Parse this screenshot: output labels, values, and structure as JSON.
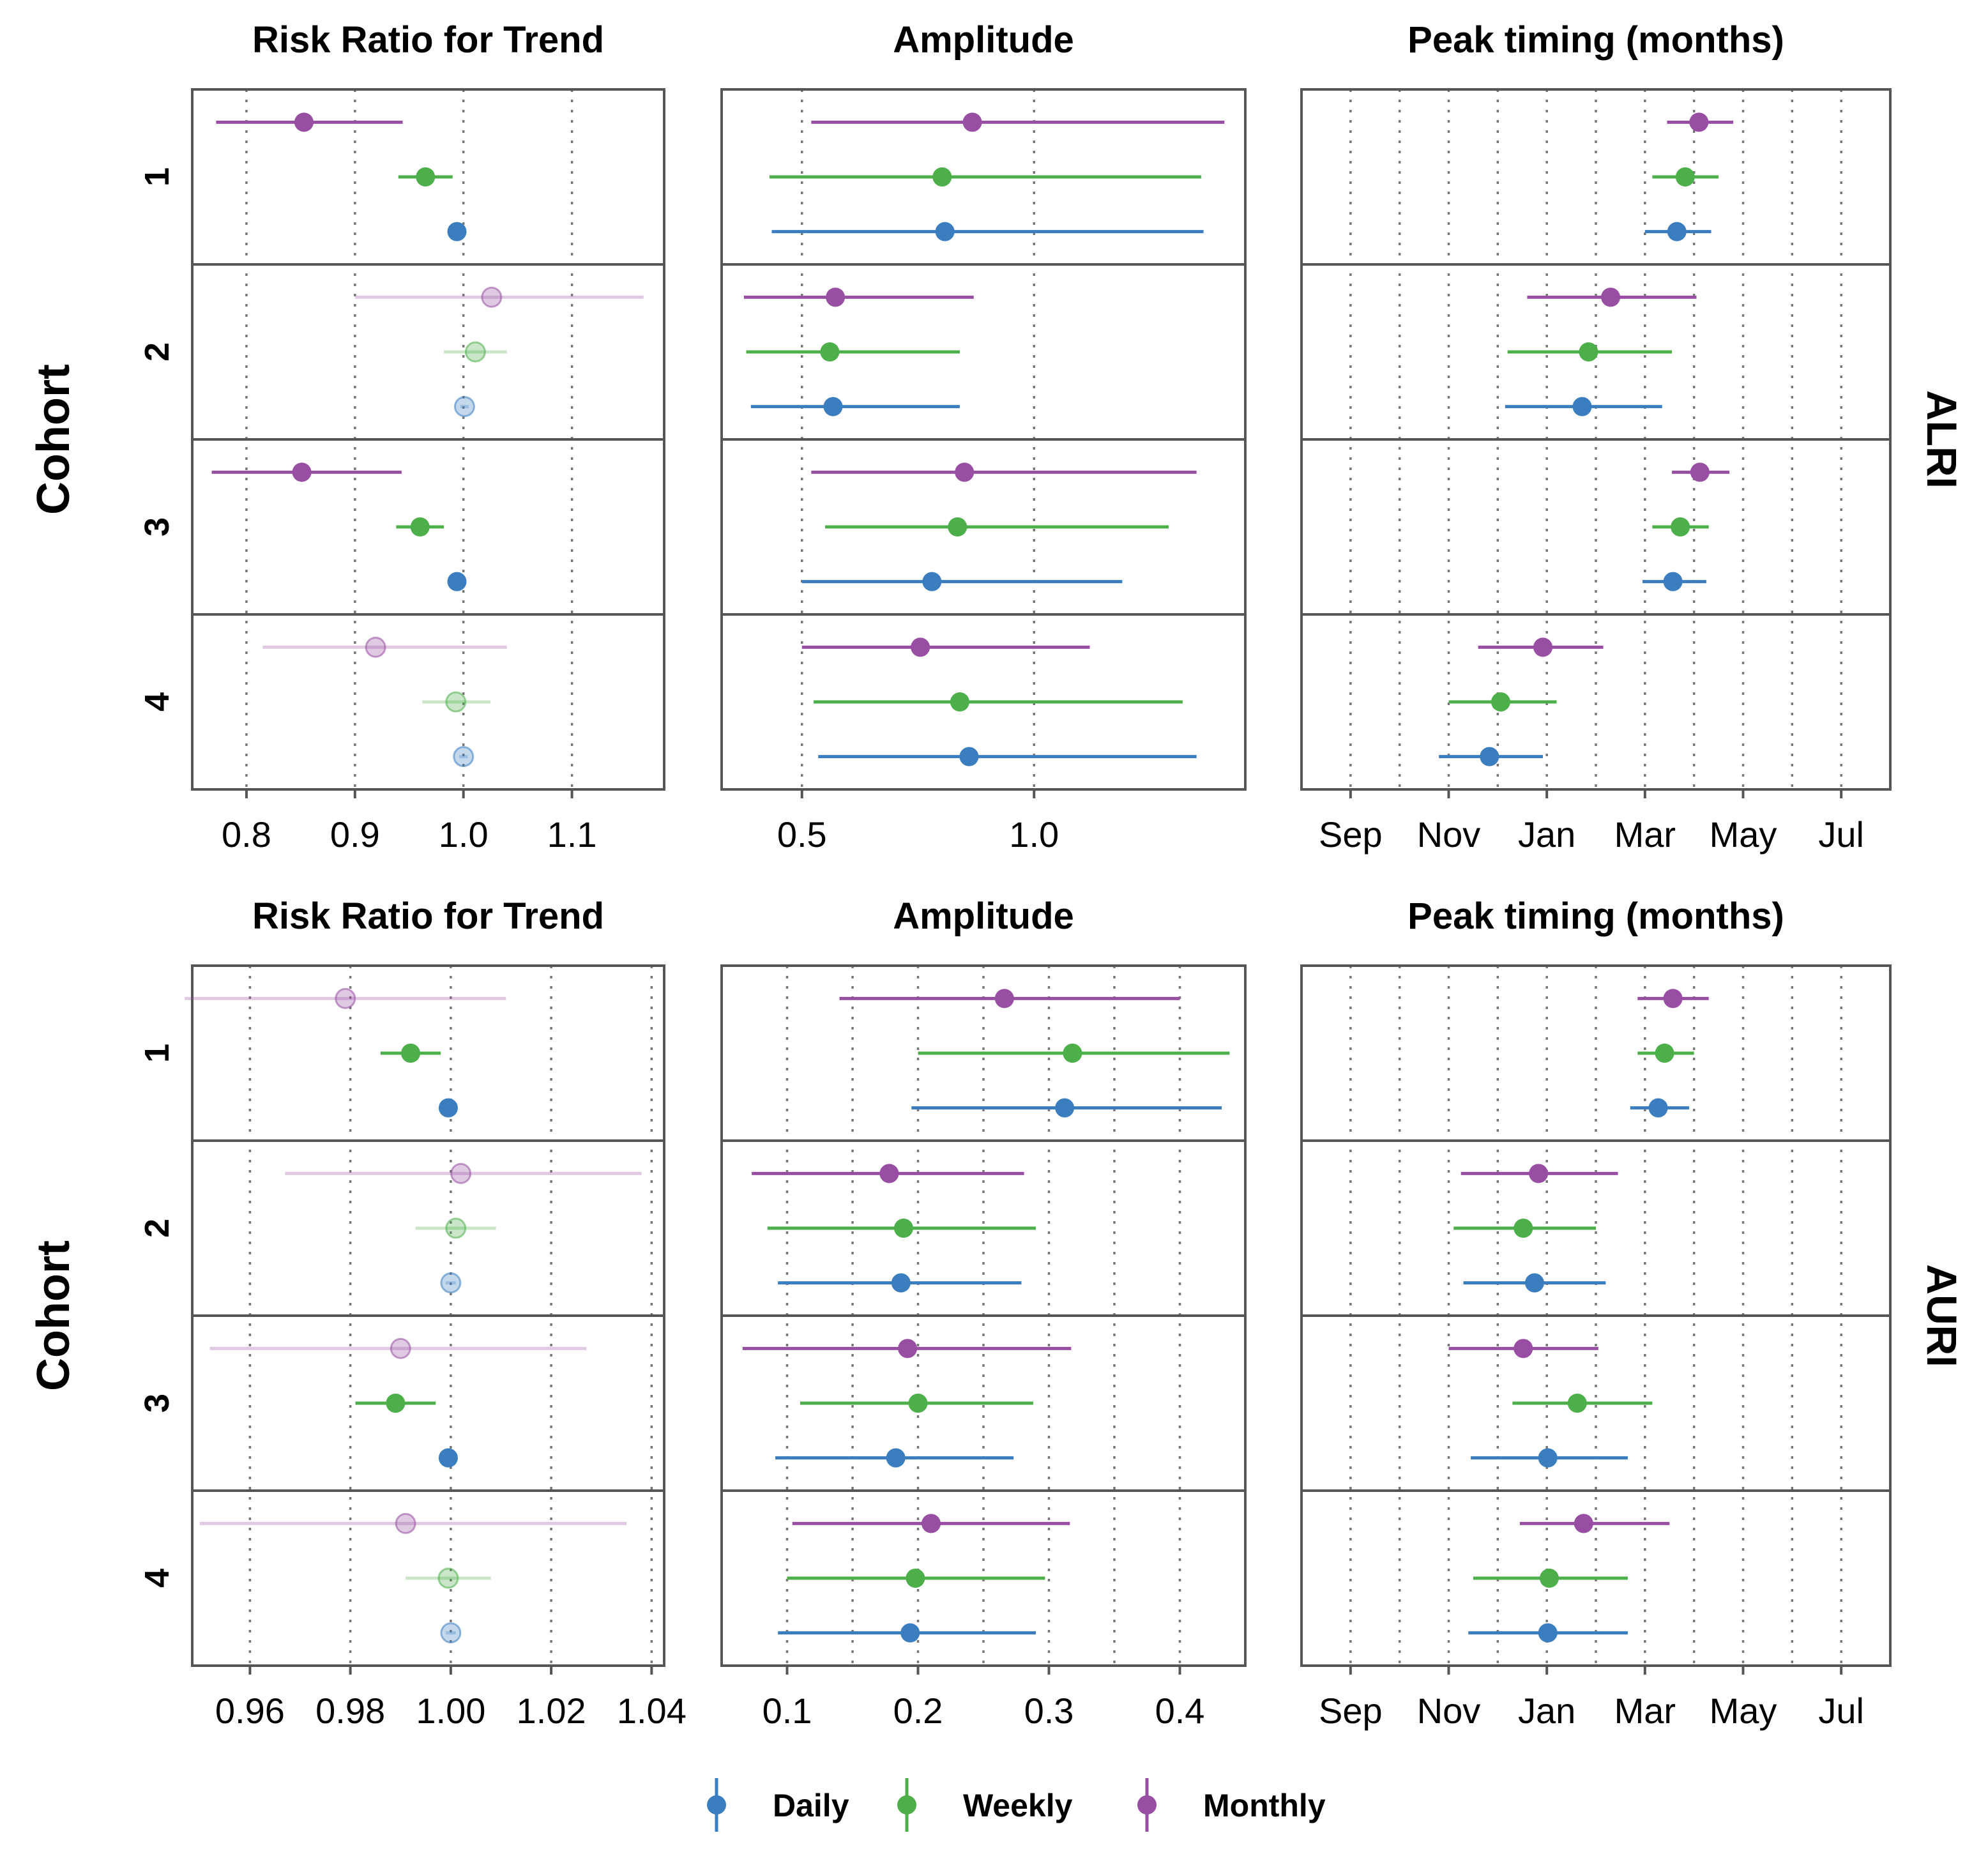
{
  "chart_data": {
    "type": "forest",
    "y_axis_label": "Cohort",
    "legend": {
      "position": "bottom",
      "entries": [
        {
          "name": "Daily",
          "color": "#3a7ebf"
        },
        {
          "name": "Weekly",
          "color": "#4daf4a"
        },
        {
          "name": "Monthly",
          "color": "#984ea3"
        }
      ]
    },
    "cohorts": [
      "1",
      "2",
      "3",
      "4"
    ],
    "panel_titles": [
      "Risk Ratio for Trend",
      "Amplitude",
      "Peak timing (months)"
    ],
    "blocks": [
      {
        "facet": "ALRI",
        "panels": [
          {
            "title": "Risk Ratio for Trend",
            "xlim": [
              0.75,
              1.185
            ],
            "ticks": [
              0.8,
              0.9,
              1.0,
              1.1
            ],
            "tick_labels": [
              "0.8",
              "0.9",
              "1.0",
              "1.1"
            ],
            "grid": "dotted-vertical",
            "data": {
              "1": {
                "Monthly": {
                  "est": 0.853,
                  "lo": 0.772,
                  "hi": 0.944,
                  "faded": false
                },
                "Weekly": {
                  "est": 0.965,
                  "lo": 0.94,
                  "hi": 0.99,
                  "faded": false
                },
                "Daily": {
                  "est": 0.994,
                  "lo": 0.99,
                  "hi": 0.998,
                  "faded": false
                }
              },
              "2": {
                "Monthly": {
                  "est": 1.026,
                  "lo": 0.9,
                  "hi": 1.166,
                  "faded": true
                },
                "Weekly": {
                  "est": 1.011,
                  "lo": 0.982,
                  "hi": 1.04,
                  "faded": true
                },
                "Daily": {
                  "est": 1.001,
                  "lo": 0.997,
                  "hi": 1.005,
                  "faded": true
                }
              },
              "3": {
                "Monthly": {
                  "est": 0.851,
                  "lo": 0.768,
                  "hi": 0.943,
                  "faded": false
                },
                "Weekly": {
                  "est": 0.96,
                  "lo": 0.938,
                  "hi": 0.982,
                  "faded": false
                },
                "Daily": {
                  "est": 0.994,
                  "lo": 0.99,
                  "hi": 0.998,
                  "faded": false
                }
              },
              "4": {
                "Monthly": {
                  "est": 0.919,
                  "lo": 0.815,
                  "hi": 1.04,
                  "faded": true
                },
                "Weekly": {
                  "est": 0.993,
                  "lo": 0.962,
                  "hi": 1.025,
                  "faded": true
                },
                "Daily": {
                  "est": 1.0,
                  "lo": 0.996,
                  "hi": 1.004,
                  "faded": true
                }
              }
            }
          },
          {
            "title": "Amplitude",
            "xlim": [
              0.327,
              1.455
            ],
            "ticks": [
              0.5,
              1.0
            ],
            "tick_labels": [
              "0.5",
              "1.0"
            ],
            "grid": "dotted-vertical",
            "data": {
              "1": {
                "Monthly": {
                  "est": 0.867,
                  "lo": 0.52,
                  "hi": 1.41,
                  "faded": false
                },
                "Weekly": {
                  "est": 0.802,
                  "lo": 0.43,
                  "hi": 1.36,
                  "faded": false
                },
                "Daily": {
                  "est": 0.808,
                  "lo": 0.435,
                  "hi": 1.365,
                  "faded": false
                }
              },
              "2": {
                "Monthly": {
                  "est": 0.572,
                  "lo": 0.375,
                  "hi": 0.87,
                  "faded": false
                },
                "Weekly": {
                  "est": 0.56,
                  "lo": 0.38,
                  "hi": 0.84,
                  "faded": false
                },
                "Daily": {
                  "est": 0.567,
                  "lo": 0.39,
                  "hi": 0.84,
                  "faded": false
                }
              },
              "3": {
                "Monthly": {
                  "est": 0.85,
                  "lo": 0.52,
                  "hi": 1.35,
                  "faded": false
                },
                "Weekly": {
                  "est": 0.835,
                  "lo": 0.55,
                  "hi": 1.29,
                  "faded": false
                },
                "Daily": {
                  "est": 0.78,
                  "lo": 0.5,
                  "hi": 1.19,
                  "faded": false
                }
              },
              "4": {
                "Monthly": {
                  "est": 0.755,
                  "lo": 0.5,
                  "hi": 1.12,
                  "faded": false
                },
                "Weekly": {
                  "est": 0.84,
                  "lo": 0.525,
                  "hi": 1.32,
                  "faded": false
                },
                "Daily": {
                  "est": 0.86,
                  "lo": 0.535,
                  "hi": 1.35,
                  "faded": false
                }
              }
            }
          },
          {
            "title": "Peak timing (months)",
            "xlim": [
              -1.0,
              11.0
            ],
            "ticks": [
              0,
              2,
              4,
              6,
              8,
              10
            ],
            "tick_labels": [
              "Sep",
              "Nov",
              "Jan",
              "Mar",
              "May",
              "Jul"
            ],
            "minor_grid": [
              1,
              3,
              5,
              7,
              9
            ],
            "grid": "dotted-vertical",
            "data": {
              "1": {
                "Monthly": {
                  "est": 7.1,
                  "lo": 6.45,
                  "hi": 7.8,
                  "faded": false
                },
                "Weekly": {
                  "est": 6.82,
                  "lo": 6.15,
                  "hi": 7.5,
                  "faded": false
                },
                "Daily": {
                  "est": 6.65,
                  "lo": 6.0,
                  "hi": 7.35,
                  "faded": false
                }
              },
              "2": {
                "Monthly": {
                  "est": 5.3,
                  "lo": 3.6,
                  "hi": 7.05,
                  "faded": false
                },
                "Weekly": {
                  "est": 4.85,
                  "lo": 3.2,
                  "hi": 6.55,
                  "faded": false
                },
                "Daily": {
                  "est": 4.72,
                  "lo": 3.15,
                  "hi": 6.35,
                  "faded": false
                }
              },
              "3": {
                "Monthly": {
                  "est": 7.12,
                  "lo": 6.55,
                  "hi": 7.72,
                  "faded": false
                },
                "Weekly": {
                  "est": 6.72,
                  "lo": 6.15,
                  "hi": 7.3,
                  "faded": false
                },
                "Daily": {
                  "est": 6.57,
                  "lo": 5.95,
                  "hi": 7.25,
                  "faded": false
                }
              },
              "4": {
                "Monthly": {
                  "est": 3.92,
                  "lo": 2.6,
                  "hi": 5.15,
                  "faded": false
                },
                "Weekly": {
                  "est": 3.06,
                  "lo": 2.0,
                  "hi": 4.2,
                  "faded": false
                },
                "Daily": {
                  "est": 2.83,
                  "lo": 1.8,
                  "hi": 3.92,
                  "faded": false
                }
              }
            }
          }
        ]
      },
      {
        "facet": "AURI",
        "panels": [
          {
            "title": "Risk Ratio for Trend",
            "xlim": [
              0.9485,
              1.0425
            ],
            "ticks": [
              0.96,
              0.98,
              1.0,
              1.02,
              1.04
            ],
            "tick_labels": [
              "0.96",
              "0.98",
              "1.00",
              "1.02",
              "1.04"
            ],
            "grid": "dotted-vertical",
            "data": {
              "1": {
                "Monthly": {
                  "est": 0.979,
                  "lo": 0.947,
                  "hi": 1.011,
                  "faded": true
                },
                "Weekly": {
                  "est": 0.992,
                  "lo": 0.986,
                  "hi": 0.998,
                  "faded": false
                },
                "Daily": {
                  "est": 0.9995,
                  "lo": 0.9985,
                  "hi": 1.0005,
                  "faded": false
                }
              },
              "2": {
                "Monthly": {
                  "est": 1.002,
                  "lo": 0.967,
                  "hi": 1.038,
                  "faded": true
                },
                "Weekly": {
                  "est": 1.001,
                  "lo": 0.993,
                  "hi": 1.009,
                  "faded": true
                },
                "Daily": {
                  "est": 1.0,
                  "lo": 0.999,
                  "hi": 1.001,
                  "faded": true
                }
              },
              "3": {
                "Monthly": {
                  "est": 0.99,
                  "lo": 0.952,
                  "hi": 1.027,
                  "faded": true
                },
                "Weekly": {
                  "est": 0.989,
                  "lo": 0.981,
                  "hi": 0.997,
                  "faded": false
                },
                "Daily": {
                  "est": 0.9995,
                  "lo": 0.9985,
                  "hi": 1.0005,
                  "faded": false
                }
              },
              "4": {
                "Monthly": {
                  "est": 0.991,
                  "lo": 0.95,
                  "hi": 1.035,
                  "faded": true
                },
                "Weekly": {
                  "est": 0.9995,
                  "lo": 0.991,
                  "hi": 1.008,
                  "faded": true
                },
                "Daily": {
                  "est": 1.0,
                  "lo": 0.999,
                  "hi": 1.001,
                  "faded": true
                }
              }
            }
          },
          {
            "title": "Amplitude",
            "xlim": [
              0.05,
              0.45
            ],
            "ticks": [
              0.1,
              0.2,
              0.3,
              0.4
            ],
            "tick_labels": [
              "0.1",
              "0.2",
              "0.3",
              "0.4"
            ],
            "minor_grid": [
              0.15,
              0.25,
              0.35
            ],
            "grid": "dotted-vertical",
            "data": {
              "1": {
                "Monthly": {
                  "est": 0.266,
                  "lo": 0.14,
                  "hi": 0.4,
                  "faded": false
                },
                "Weekly": {
                  "est": 0.318,
                  "lo": 0.2,
                  "hi": 0.438,
                  "faded": false
                },
                "Daily": {
                  "est": 0.312,
                  "lo": 0.195,
                  "hi": 0.432,
                  "faded": false
                }
              },
              "2": {
                "Monthly": {
                  "est": 0.178,
                  "lo": 0.073,
                  "hi": 0.281,
                  "faded": false
                },
                "Weekly": {
                  "est": 0.189,
                  "lo": 0.085,
                  "hi": 0.29,
                  "faded": false
                },
                "Daily": {
                  "est": 0.187,
                  "lo": 0.093,
                  "hi": 0.279,
                  "faded": false
                }
              },
              "3": {
                "Monthly": {
                  "est": 0.192,
                  "lo": 0.066,
                  "hi": 0.317,
                  "faded": false
                },
                "Weekly": {
                  "est": 0.2,
                  "lo": 0.11,
                  "hi": 0.288,
                  "faded": false
                },
                "Daily": {
                  "est": 0.183,
                  "lo": 0.091,
                  "hi": 0.273,
                  "faded": false
                }
              },
              "4": {
                "Monthly": {
                  "est": 0.21,
                  "lo": 0.104,
                  "hi": 0.316,
                  "faded": false
                },
                "Weekly": {
                  "est": 0.198,
                  "lo": 0.1,
                  "hi": 0.297,
                  "faded": false
                },
                "Daily": {
                  "est": 0.194,
                  "lo": 0.093,
                  "hi": 0.29,
                  "faded": false
                }
              }
            }
          },
          {
            "title": "Peak timing (months)",
            "xlim": [
              -1.0,
              11.0
            ],
            "ticks": [
              0,
              2,
              4,
              6,
              8,
              10
            ],
            "tick_labels": [
              "Sep",
              "Nov",
              "Jan",
              "Mar",
              "May",
              "Jul"
            ],
            "minor_grid": [
              1,
              3,
              5,
              7,
              9
            ],
            "grid": "dotted-vertical",
            "data": {
              "1": {
                "Monthly": {
                  "est": 6.57,
                  "lo": 5.85,
                  "hi": 7.3,
                  "faded": false
                },
                "Weekly": {
                  "est": 6.4,
                  "lo": 5.85,
                  "hi": 7.0,
                  "faded": false
                },
                "Daily": {
                  "est": 6.27,
                  "lo": 5.7,
                  "hi": 6.9,
                  "faded": false
                }
              },
              "2": {
                "Monthly": {
                  "est": 3.83,
                  "lo": 2.25,
                  "hi": 5.45,
                  "faded": false
                },
                "Weekly": {
                  "est": 3.52,
                  "lo": 2.1,
                  "hi": 5.0,
                  "faded": false
                },
                "Daily": {
                  "est": 3.75,
                  "lo": 2.3,
                  "hi": 5.2,
                  "faded": false
                }
              },
              "3": {
                "Monthly": {
                  "est": 3.52,
                  "lo": 2.0,
                  "hi": 5.05,
                  "faded": false
                },
                "Weekly": {
                  "est": 4.62,
                  "lo": 3.3,
                  "hi": 6.15,
                  "faded": false
                },
                "Daily": {
                  "est": 4.02,
                  "lo": 2.45,
                  "hi": 5.65,
                  "faded": false
                }
              },
              "4": {
                "Monthly": {
                  "est": 4.75,
                  "lo": 3.45,
                  "hi": 6.5,
                  "faded": false
                },
                "Weekly": {
                  "est": 4.05,
                  "lo": 2.5,
                  "hi": 5.65,
                  "faded": false
                },
                "Daily": {
                  "est": 4.02,
                  "lo": 2.4,
                  "hi": 5.65,
                  "faded": false
                }
              }
            }
          }
        ]
      }
    ]
  }
}
